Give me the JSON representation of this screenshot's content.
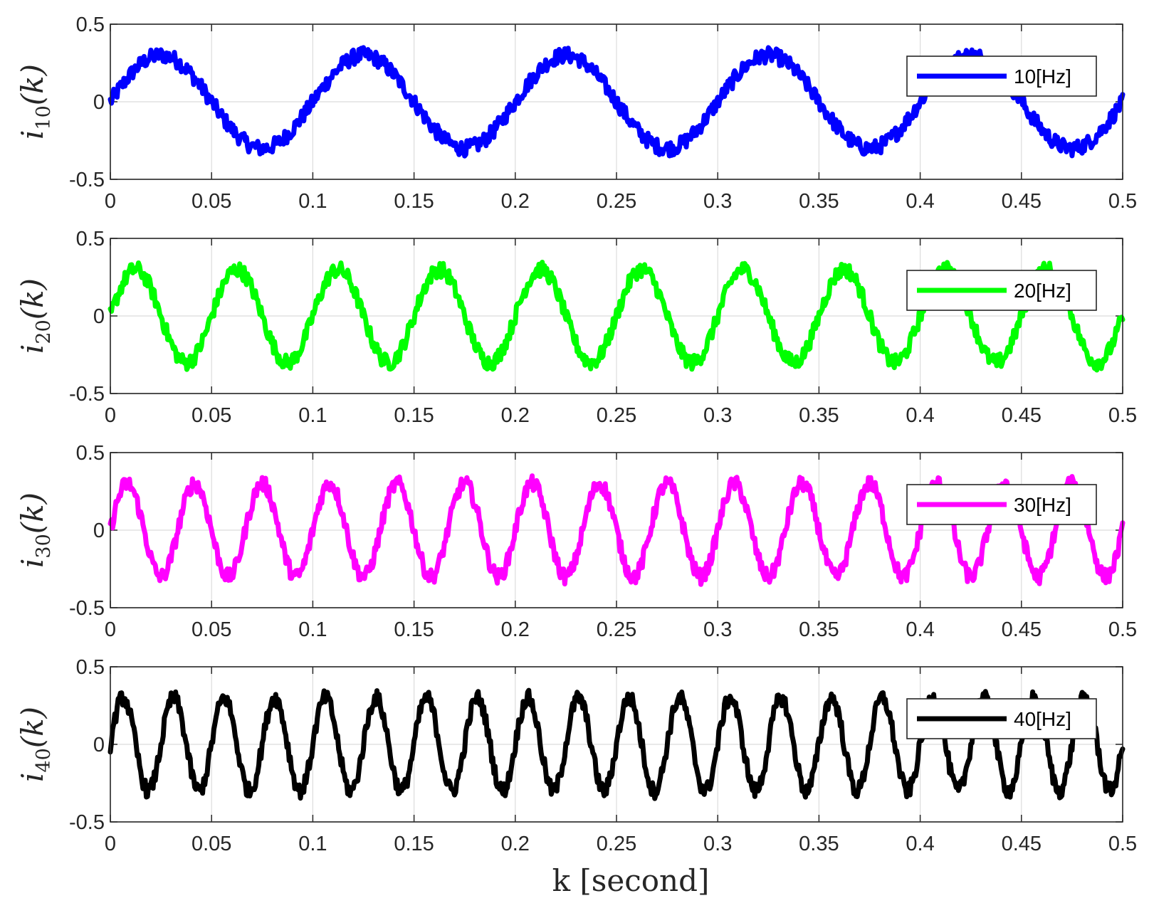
{
  "chart_data": [
    {
      "type": "line",
      "xlim": [
        0,
        0.5
      ],
      "ylim": [
        -0.5,
        0.5
      ],
      "xticks": [
        "0",
        "0.05",
        "0.1",
        "0.15",
        "0.2",
        "0.25",
        "0.3",
        "0.35",
        "0.4",
        "0.45",
        "0.5"
      ],
      "yticks": [
        "-0.5",
        "0",
        "0.5"
      ],
      "ylabel": {
        "main": "i",
        "sub": "10",
        "arg": "(k)"
      },
      "grid": true,
      "legend": "top-right",
      "series": [
        {
          "name": "10[Hz]",
          "color": "#0000ff",
          "frequency_hz": 10,
          "amplitude": 0.3,
          "noise": 0.05
        }
      ]
    },
    {
      "type": "line",
      "xlim": [
        0,
        0.5
      ],
      "ylim": [
        -0.5,
        0.5
      ],
      "xticks": [
        "0",
        "0.05",
        "0.1",
        "0.15",
        "0.2",
        "0.25",
        "0.3",
        "0.35",
        "0.4",
        "0.45",
        "0.5"
      ],
      "yticks": [
        "-0.5",
        "0",
        "0.5"
      ],
      "ylabel": {
        "main": "i",
        "sub": "20",
        "arg": "(k)"
      },
      "grid": true,
      "legend": "top-right",
      "series": [
        {
          "name": "20[Hz]",
          "color": "#00ff00",
          "frequency_hz": 20,
          "amplitude": 0.3,
          "noise": 0.05
        }
      ]
    },
    {
      "type": "line",
      "xlim": [
        0,
        0.5
      ],
      "ylim": [
        -0.5,
        0.5
      ],
      "xticks": [
        "0",
        "0.05",
        "0.1",
        "0.15",
        "0.2",
        "0.25",
        "0.3",
        "0.35",
        "0.4",
        "0.45",
        "0.5"
      ],
      "yticks": [
        "-0.5",
        "0",
        "0.5"
      ],
      "ylabel": {
        "main": "i",
        "sub": "30",
        "arg": "(k)"
      },
      "grid": true,
      "legend": "top-right",
      "series": [
        {
          "name": "30[Hz]",
          "color": "#ff00ff",
          "frequency_hz": 30,
          "amplitude": 0.3,
          "noise": 0.05
        }
      ]
    },
    {
      "type": "line",
      "xlim": [
        0,
        0.5
      ],
      "ylim": [
        -0.5,
        0.5
      ],
      "xticks": [
        "0",
        "0.05",
        "0.1",
        "0.15",
        "0.2",
        "0.25",
        "0.3",
        "0.35",
        "0.4",
        "0.45",
        "0.5"
      ],
      "yticks": [
        "-0.5",
        "0",
        "0.5"
      ],
      "ylabel": {
        "main": "i",
        "sub": "40",
        "arg": "(k)"
      },
      "grid": true,
      "legend": "top-right",
      "series": [
        {
          "name": "40[Hz]",
          "color": "#000000",
          "frequency_hz": 40,
          "amplitude": 0.3,
          "noise": 0.05
        }
      ]
    }
  ],
  "xlabel": "k [second]"
}
